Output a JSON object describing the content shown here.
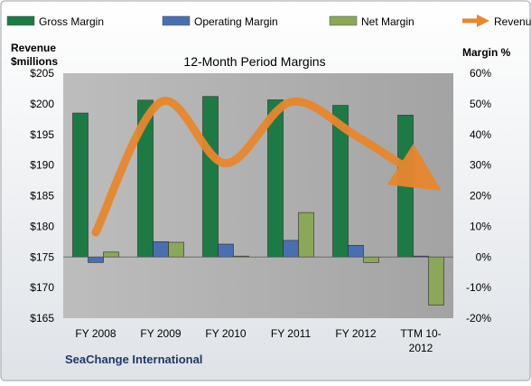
{
  "colors": {
    "gross": "#1e7a45",
    "operating": "#4a6fb0",
    "net": "#8aa75a",
    "revenue": "#e8872e",
    "plot_bg": "#aeaeae",
    "border": "#9aa0a8"
  },
  "chart_data": {
    "type": "bar",
    "title": "12-Month Period Margins",
    "company": "SeaChange International",
    "left_axis_title_1": "Revenue",
    "left_axis_title_2": "$millions",
    "right_axis_title": "Margin %",
    "categories": [
      {
        "line1": "FY 2008",
        "line2": ""
      },
      {
        "line1": "FY 2009",
        "line2": ""
      },
      {
        "line1": "FY 2010",
        "line2": ""
      },
      {
        "line1": "FY 2011",
        "line2": ""
      },
      {
        "line1": "FY 2012",
        "line2": ""
      },
      {
        "line1": "TTM 10-",
        "line2": "2012"
      }
    ],
    "y_left": {
      "min": 165,
      "max": 205,
      "ticks": [
        {
          "value": 205,
          "label": "$205"
        },
        {
          "value": 200,
          "label": "$200"
        },
        {
          "value": 195,
          "label": "$195"
        },
        {
          "value": 190,
          "label": "$190"
        },
        {
          "value": 185,
          "label": "$185"
        },
        {
          "value": 180,
          "label": "$180"
        },
        {
          "value": 175,
          "label": "$175"
        },
        {
          "value": 170,
          "label": "$170"
        },
        {
          "value": 165,
          "label": "$165"
        }
      ]
    },
    "y_right": {
      "min": -20,
      "max": 60,
      "ticks": [
        {
          "value": 60,
          "label": "60%"
        },
        {
          "value": 50,
          "label": "50%"
        },
        {
          "value": 40,
          "label": "40%"
        },
        {
          "value": 30,
          "label": "30%"
        },
        {
          "value": 20,
          "label": "20%"
        },
        {
          "value": 10,
          "label": "10%"
        },
        {
          "value": 0,
          "label": "0%"
        },
        {
          "value": -10,
          "label": "-10%"
        },
        {
          "value": -20,
          "label": "-20%"
        }
      ]
    },
    "bar_series": [
      {
        "key": "gross",
        "name": "Gross Margin",
        "values": [
          47.0,
          51.2,
          52.4,
          51.3,
          49.5,
          46.3
        ]
      },
      {
        "key": "operating",
        "name": "Operating Margin",
        "values": [
          -1.8,
          5.0,
          4.2,
          5.4,
          3.8,
          0.3
        ]
      },
      {
        "key": "net",
        "name": "Net Margin",
        "values": [
          1.6,
          4.8,
          0.3,
          14.5,
          -1.8,
          -15.7
        ]
      }
    ],
    "line_series": {
      "name": "Revenues",
      "axis": "left",
      "values": [
        179.0,
        200.3,
        190.3,
        200.3,
        194.8,
        188.0
      ]
    },
    "grid": false,
    "legend_position": "top"
  }
}
